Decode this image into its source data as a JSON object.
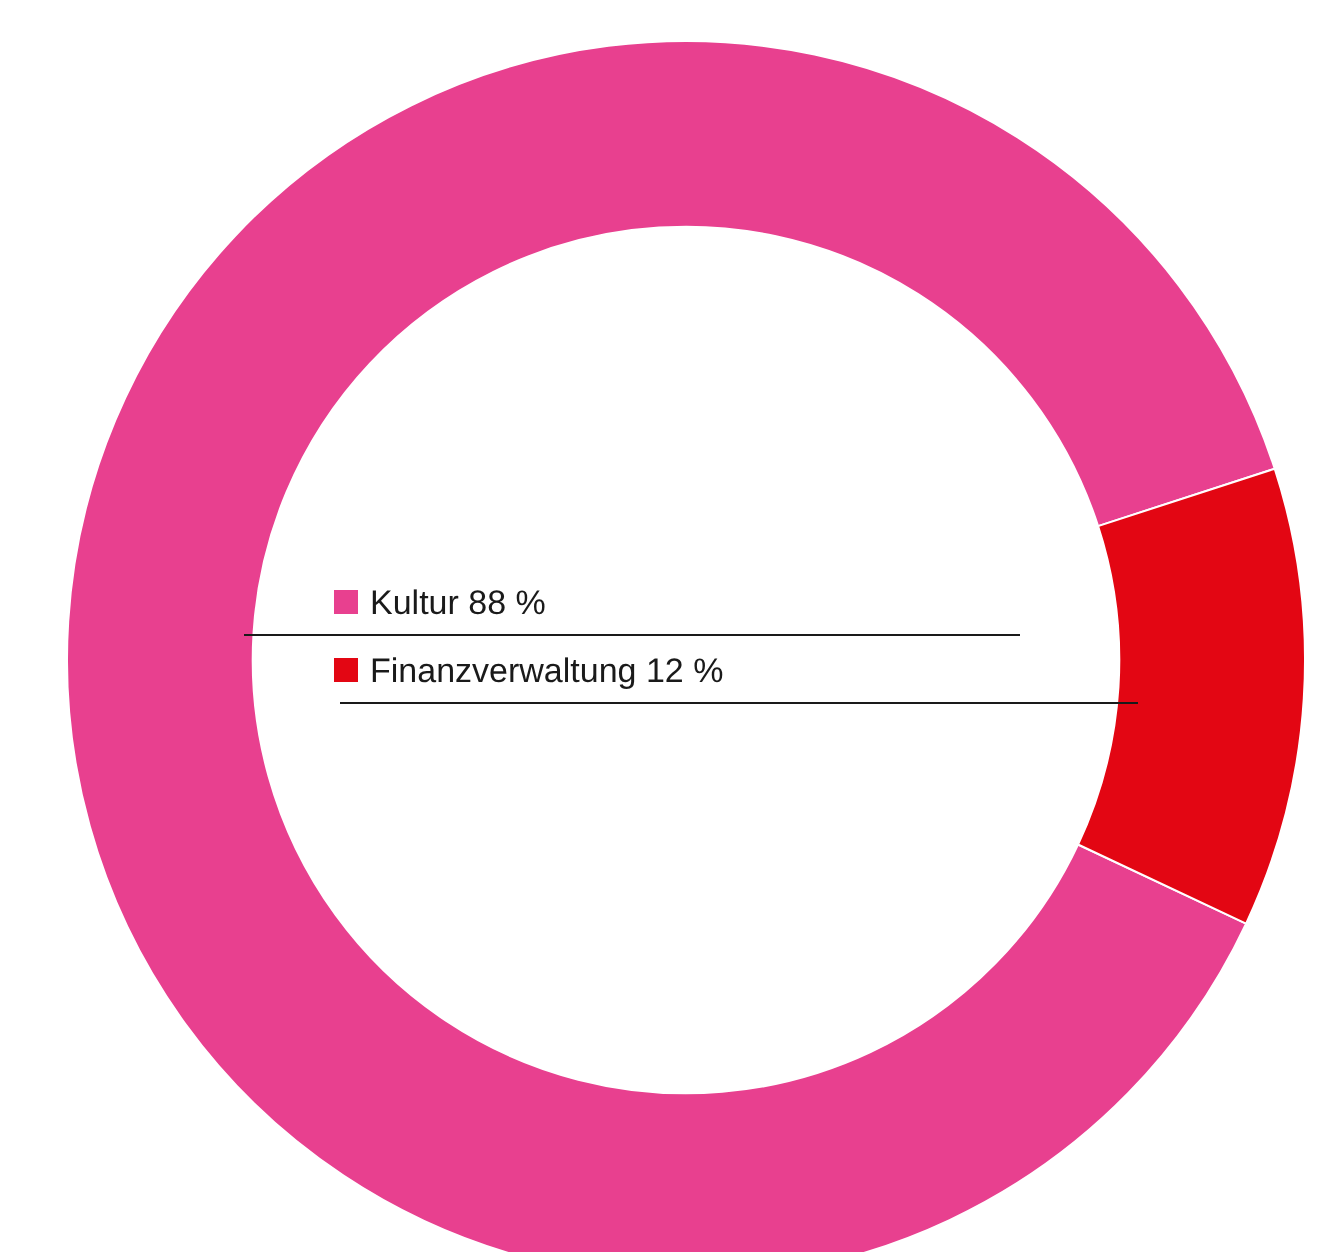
{
  "chart_data": {
    "type": "donut",
    "categories": [
      "Kultur",
      "Finanzverwaltung"
    ],
    "values": [
      88,
      12
    ],
    "colors": [
      "#e8408f",
      "#e30613"
    ],
    "value_labels": [
      "88 %",
      "12 %"
    ],
    "legend": "center"
  }
}
